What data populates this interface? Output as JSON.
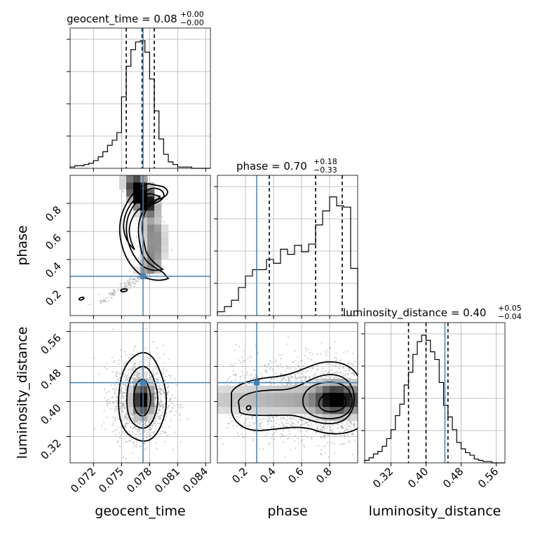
{
  "chart_data": {
    "type": "corner",
    "parameters": [
      {
        "name": "geocent_time",
        "median": "0.08",
        "plus": "+0.00",
        "minus": "−0.00",
        "range": [
          0.0695,
          0.0845
        ],
        "ticks": [
          "0.072",
          "0.075",
          "0.078",
          "0.081",
          "0.084"
        ],
        "tick_values": [
          0.072,
          0.075,
          0.078,
          0.081,
          0.084
        ],
        "quantiles": [
          0.0755,
          0.0772,
          0.0785
        ],
        "truth": 0.0773,
        "hist_bins": [
          0.0695,
          0.07,
          0.0705,
          0.071,
          0.0715,
          0.072,
          0.0725,
          0.073,
          0.0735,
          0.074,
          0.0745,
          0.075,
          0.0755,
          0.076,
          0.0765,
          0.077,
          0.0775,
          0.078,
          0.0785,
          0.079,
          0.0795,
          0.08,
          0.0805,
          0.081,
          0.0815,
          0.082,
          0.0825,
          0.083,
          0.0835,
          0.084,
          0.0845
        ],
        "hist_values": [
          0.01,
          0.02,
          0.02,
          0.03,
          0.04,
          0.06,
          0.09,
          0.13,
          0.18,
          0.22,
          0.28,
          0.56,
          0.8,
          0.93,
          0.99,
          1.0,
          0.91,
          0.7,
          0.45,
          0.23,
          0.11,
          0.05,
          0.03,
          0.01,
          0.01,
          0.01,
          0.0,
          0.0,
          0.0,
          0.0
        ]
      },
      {
        "name": "phase",
        "median": "0.70",
        "plus": "+0.18",
        "minus": "−0.33",
        "range": [
          0.0,
          1.0
        ],
        "ticks": [
          "0.2",
          "0.4",
          "0.6",
          "0.8"
        ],
        "tick_values": [
          0.2,
          0.4,
          0.6,
          0.8
        ],
        "quantiles": [
          0.37,
          0.7,
          0.89
        ],
        "truth": 0.28,
        "hist_bins": [
          0.0,
          0.05,
          0.1,
          0.15,
          0.2,
          0.25,
          0.3,
          0.35,
          0.4,
          0.45,
          0.5,
          0.55,
          0.6,
          0.65,
          0.7,
          0.75,
          0.8,
          0.85,
          0.9,
          0.95,
          1.0
        ],
        "hist_values": [
          0.03,
          0.07,
          0.12,
          0.22,
          0.31,
          0.36,
          0.36,
          0.44,
          0.41,
          0.52,
          0.48,
          0.55,
          0.5,
          0.56,
          0.71,
          0.82,
          0.93,
          0.86,
          0.85,
          0.37
        ]
      },
      {
        "name": "luminosity_distance",
        "median": "0.40",
        "plus": "+0.05",
        "minus": "−0.04",
        "range": [
          0.26,
          0.58
        ],
        "ticks": [
          "0.32",
          "0.40",
          "0.48",
          "0.56"
        ],
        "tick_values": [
          0.32,
          0.4,
          0.48,
          0.56
        ],
        "quantiles": [
          0.36,
          0.4,
          0.45
        ],
        "truth": 0.443,
        "hist_bins": [
          0.26,
          0.27,
          0.28,
          0.29,
          0.3,
          0.31,
          0.32,
          0.33,
          0.34,
          0.35,
          0.36,
          0.37,
          0.38,
          0.39,
          0.4,
          0.41,
          0.42,
          0.43,
          0.44,
          0.45,
          0.46,
          0.47,
          0.48,
          0.49,
          0.5,
          0.51,
          0.52,
          0.53,
          0.54,
          0.55,
          0.56,
          0.57,
          0.58
        ],
        "hist_values": [
          0.02,
          0.04,
          0.07,
          0.09,
          0.13,
          0.19,
          0.26,
          0.37,
          0.46,
          0.61,
          0.71,
          0.85,
          0.95,
          1.0,
          0.96,
          0.87,
          0.81,
          0.63,
          0.45,
          0.36,
          0.26,
          0.16,
          0.11,
          0.08,
          0.06,
          0.03,
          0.02,
          0.01,
          0.01,
          0.0,
          0.0,
          0.0
        ]
      }
    ],
    "grid": true,
    "truth_color": "#4682b4"
  }
}
